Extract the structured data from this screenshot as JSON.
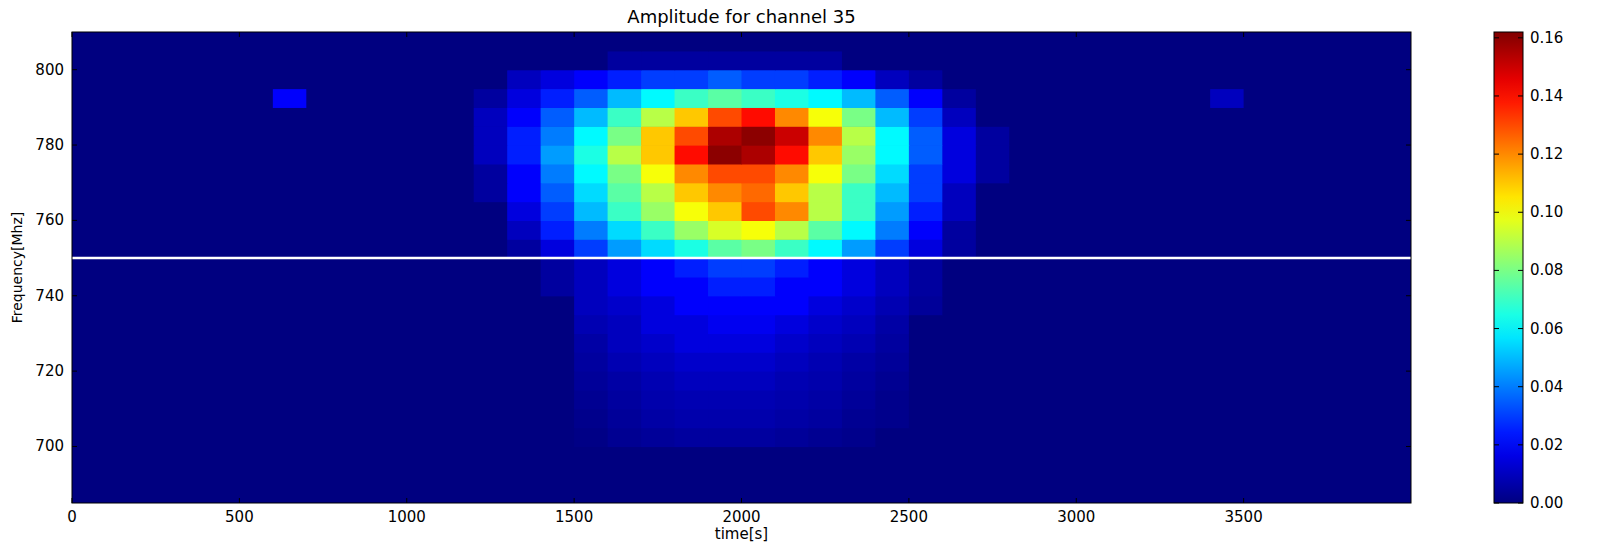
{
  "chart_data": {
    "type": "heatmap",
    "title": "Amplitude for channel 35",
    "x_label": "time[s]",
    "y_label": "Frequency[Mhz]",
    "xlim": [
      0,
      4000
    ],
    "ylim": [
      685,
      810
    ],
    "xticks": [
      0,
      500,
      1000,
      1500,
      2000,
      2500,
      3000,
      3500
    ],
    "yticks": [
      700,
      720,
      740,
      760,
      780,
      800
    ],
    "grid": false,
    "hline": 750,
    "colorbar": {
      "range": [
        0,
        0.162
      ],
      "ticks": [
        {
          "value": 0,
          "label": "0.00"
        },
        {
          "value": 0.02,
          "label": "0.02"
        },
        {
          "value": 0.04,
          "label": "0.04"
        },
        {
          "value": 0.06,
          "label": "0.06"
        },
        {
          "value": 0.08,
          "label": "0.08"
        },
        {
          "value": 0.1,
          "label": "0.10"
        },
        {
          "value": 0.12,
          "label": "0.12"
        },
        {
          "value": 0.14,
          "label": "0.14"
        },
        {
          "value": 0.16,
          "label": "0.16"
        }
      ]
    },
    "cells": {
      "x_edges": [
        0,
        100,
        200,
        300,
        400,
        500,
        600,
        700,
        800,
        900,
        1000,
        1100,
        1200,
        1300,
        1400,
        1500,
        1600,
        1700,
        1800,
        1900,
        2000,
        2100,
        2200,
        2300,
        2400,
        2500,
        2600,
        2700,
        2800,
        2900,
        3000,
        3100,
        3200,
        3300,
        3400,
        3500,
        3600,
        3700,
        3800,
        3900,
        4000
      ],
      "y_edges": [
        685,
        690,
        695,
        700,
        705,
        710,
        715,
        720,
        725,
        730,
        735,
        740,
        745,
        750,
        755,
        760,
        765,
        770,
        775,
        780,
        785,
        790,
        795,
        800,
        805,
        810
      ],
      "values": [
        [
          0,
          0,
          0,
          0,
          0,
          0,
          0,
          0,
          0,
          0,
          0,
          0,
          0,
          0,
          0,
          0,
          0,
          0,
          0,
          0,
          0,
          0,
          0,
          0,
          0,
          0,
          0,
          0,
          0,
          0,
          0,
          0,
          0,
          0,
          0,
          0,
          0,
          0,
          0,
          0
        ],
        [
          0,
          0,
          0,
          0,
          0,
          0,
          0,
          0,
          0,
          0,
          0,
          0,
          0,
          0,
          0,
          0,
          0,
          0,
          0,
          0,
          0,
          0,
          0,
          0,
          0,
          0,
          0,
          0,
          0,
          0,
          0,
          0,
          0,
          0,
          0,
          0,
          0,
          0,
          0,
          0
        ],
        [
          0,
          0,
          0,
          0,
          0,
          0,
          0,
          0,
          0,
          0,
          0,
          0,
          0,
          0,
          0,
          0,
          0,
          0,
          0,
          0,
          0,
          0,
          0,
          0,
          0,
          0,
          0,
          0,
          0,
          0,
          0,
          0,
          0,
          0,
          0,
          0,
          0,
          0,
          0,
          0
        ],
        [
          0,
          0,
          0,
          0,
          0,
          0,
          0,
          0,
          0,
          0,
          0,
          0,
          0,
          0,
          0,
          0.001,
          0.003,
          0.004,
          0.005,
          0.005,
          0.005,
          0.004,
          0.003,
          0.002,
          0,
          0,
          0,
          0,
          0,
          0,
          0,
          0,
          0,
          0,
          0,
          0,
          0,
          0,
          0,
          0
        ],
        [
          0,
          0,
          0,
          0,
          0,
          0,
          0,
          0,
          0,
          0,
          0,
          0,
          0,
          0,
          0,
          0.002,
          0.004,
          0.006,
          0.007,
          0.007,
          0.007,
          0.006,
          0.005,
          0.003,
          0.002,
          0,
          0,
          0,
          0,
          0,
          0,
          0,
          0,
          0,
          0,
          0,
          0,
          0,
          0,
          0
        ],
        [
          0,
          0,
          0,
          0,
          0,
          0,
          0,
          0,
          0,
          0,
          0,
          0,
          0,
          0,
          0,
          0.003,
          0.005,
          0.007,
          0.008,
          0.008,
          0.008,
          0.007,
          0.006,
          0.004,
          0.002,
          0,
          0,
          0,
          0,
          0,
          0,
          0,
          0,
          0,
          0,
          0,
          0,
          0,
          0,
          0
        ],
        [
          0,
          0,
          0,
          0,
          0,
          0,
          0,
          0,
          0,
          0,
          0,
          0,
          0,
          0,
          0,
          0.004,
          0.006,
          0.008,
          0.01,
          0.01,
          0.01,
          0.008,
          0.007,
          0.005,
          0.003,
          0,
          0,
          0,
          0,
          0,
          0,
          0,
          0,
          0,
          0,
          0,
          0,
          0,
          0,
          0
        ],
        [
          0,
          0,
          0,
          0,
          0,
          0,
          0,
          0,
          0,
          0,
          0,
          0,
          0,
          0,
          0,
          0.005,
          0.008,
          0.01,
          0.012,
          0.012,
          0.012,
          0.01,
          0.008,
          0.006,
          0.004,
          0,
          0,
          0,
          0,
          0,
          0,
          0,
          0,
          0,
          0,
          0,
          0,
          0,
          0,
          0
        ],
        [
          0,
          0,
          0,
          0,
          0,
          0,
          0,
          0,
          0,
          0,
          0,
          0,
          0,
          0,
          0,
          0.006,
          0.01,
          0.012,
          0.015,
          0.015,
          0.015,
          0.012,
          0.01,
          0.008,
          0.005,
          0,
          0,
          0,
          0,
          0,
          0,
          0,
          0,
          0,
          0,
          0,
          0,
          0,
          0,
          0
        ],
        [
          0,
          0,
          0,
          0,
          0,
          0,
          0,
          0,
          0,
          0,
          0,
          0,
          0,
          0,
          0,
          0.008,
          0.01,
          0.015,
          0.015,
          0.018,
          0.018,
          0.015,
          0.012,
          0.01,
          0.006,
          0,
          0,
          0,
          0,
          0,
          0,
          0,
          0,
          0,
          0,
          0,
          0,
          0,
          0,
          0
        ],
        [
          0,
          0,
          0,
          0,
          0,
          0,
          0,
          0,
          0,
          0,
          0,
          0,
          0,
          0,
          0,
          0.01,
          0.012,
          0.015,
          0.02,
          0.02,
          0.02,
          0.02,
          0.015,
          0.012,
          0.008,
          0.004,
          0,
          0,
          0,
          0,
          0,
          0,
          0,
          0,
          0,
          0,
          0,
          0,
          0,
          0
        ],
        [
          0,
          0,
          0,
          0,
          0,
          0,
          0,
          0,
          0,
          0,
          0,
          0,
          0,
          0,
          0.005,
          0.01,
          0.015,
          0.02,
          0.02,
          0.025,
          0.025,
          0.02,
          0.02,
          0.015,
          0.01,
          0.005,
          0,
          0,
          0,
          0,
          0,
          0,
          0,
          0,
          0,
          0,
          0,
          0,
          0,
          0
        ],
        [
          0,
          0,
          0,
          0,
          0,
          0,
          0,
          0,
          0,
          0,
          0,
          0,
          0,
          0,
          0.005,
          0.01,
          0.015,
          0.02,
          0.025,
          0.03,
          0.03,
          0.025,
          0.02,
          0.015,
          0.01,
          0.005,
          0,
          0,
          0,
          0,
          0,
          0,
          0,
          0,
          0,
          0,
          0,
          0,
          0,
          0
        ],
        [
          0,
          0,
          0,
          0,
          0,
          0,
          0,
          0,
          0,
          0,
          0,
          0,
          0,
          0.005,
          0.015,
          0.03,
          0.045,
          0.055,
          0.065,
          0.075,
          0.08,
          0.07,
          0.06,
          0.045,
          0.03,
          0.015,
          0.005,
          0,
          0,
          0,
          0,
          0,
          0,
          0,
          0,
          0,
          0,
          0,
          0,
          0
        ],
        [
          0,
          0,
          0,
          0,
          0,
          0,
          0,
          0,
          0,
          0,
          0,
          0,
          0,
          0.01,
          0.025,
          0.04,
          0.055,
          0.07,
          0.085,
          0.095,
          0.1,
          0.09,
          0.075,
          0.06,
          0.04,
          0.02,
          0.005,
          0,
          0,
          0,
          0,
          0,
          0,
          0,
          0,
          0,
          0,
          0,
          0,
          0
        ],
        [
          0,
          0,
          0,
          0,
          0,
          0,
          0,
          0,
          0,
          0,
          0,
          0,
          0,
          0.015,
          0.03,
          0.05,
          0.07,
          0.085,
          0.1,
          0.11,
          0.13,
          0.12,
          0.09,
          0.07,
          0.045,
          0.025,
          0.01,
          0,
          0,
          0,
          0,
          0,
          0,
          0,
          0,
          0,
          0,
          0,
          0,
          0
        ],
        [
          0,
          0,
          0,
          0,
          0,
          0,
          0,
          0,
          0,
          0,
          0,
          0,
          0.005,
          0.02,
          0.035,
          0.055,
          0.075,
          0.09,
          0.11,
          0.12,
          0.125,
          0.11,
          0.09,
          0.07,
          0.05,
          0.03,
          0.01,
          0,
          0,
          0,
          0,
          0,
          0,
          0,
          0,
          0,
          0,
          0,
          0,
          0
        ],
        [
          0,
          0,
          0,
          0,
          0,
          0,
          0,
          0,
          0,
          0,
          0,
          0,
          0.005,
          0.02,
          0.04,
          0.06,
          0.08,
          0.1,
          0.12,
          0.13,
          0.13,
          0.12,
          0.1,
          0.08,
          0.055,
          0.03,
          0.015,
          0.005,
          0,
          0,
          0,
          0,
          0,
          0,
          0,
          0,
          0,
          0,
          0,
          0
        ],
        [
          0,
          0,
          0,
          0,
          0,
          0,
          0,
          0,
          0,
          0,
          0,
          0,
          0.01,
          0.025,
          0.045,
          0.065,
          0.09,
          0.11,
          0.14,
          0.16,
          0.155,
          0.14,
          0.11,
          0.085,
          0.06,
          0.035,
          0.015,
          0.005,
          0,
          0,
          0,
          0,
          0,
          0,
          0,
          0,
          0,
          0,
          0,
          0
        ],
        [
          0,
          0,
          0,
          0,
          0,
          0,
          0,
          0,
          0,
          0,
          0,
          0,
          0.01,
          0.025,
          0.04,
          0.06,
          0.08,
          0.11,
          0.13,
          0.155,
          0.16,
          0.15,
          0.12,
          0.09,
          0.06,
          0.035,
          0.015,
          0.005,
          0,
          0,
          0,
          0,
          0,
          0,
          0,
          0,
          0,
          0,
          0,
          0
        ],
        [
          0,
          0,
          0,
          0,
          0,
          0,
          0,
          0,
          0,
          0,
          0,
          0,
          0.01,
          0.02,
          0.035,
          0.05,
          0.07,
          0.09,
          0.11,
          0.13,
          0.14,
          0.12,
          0.1,
          0.08,
          0.05,
          0.03,
          0.01,
          0,
          0,
          0,
          0,
          0,
          0,
          0,
          0,
          0,
          0,
          0,
          0,
          0
        ],
        [
          0,
          0,
          0,
          0,
          0,
          0,
          0.02,
          0,
          0,
          0,
          0,
          0,
          0.005,
          0.015,
          0.025,
          0.035,
          0.05,
          0.06,
          0.07,
          0.075,
          0.07,
          0.065,
          0.06,
          0.05,
          0.035,
          0.02,
          0.005,
          0,
          0,
          0,
          0,
          0,
          0,
          0,
          0.01,
          0,
          0,
          0,
          0,
          0
        ],
        [
          0,
          0,
          0,
          0,
          0,
          0,
          0,
          0,
          0,
          0,
          0,
          0,
          0,
          0.01,
          0.015,
          0.02,
          0.025,
          0.03,
          0.03,
          0.035,
          0.03,
          0.03,
          0.025,
          0.02,
          0.01,
          0.005,
          0,
          0,
          0,
          0,
          0,
          0,
          0,
          0,
          0,
          0,
          0,
          0,
          0,
          0
        ],
        [
          0,
          0,
          0,
          0,
          0,
          0,
          0,
          0,
          0,
          0,
          0,
          0,
          0,
          0,
          0,
          0,
          0.005,
          0.005,
          0.005,
          0.005,
          0.005,
          0.005,
          0.005,
          0,
          0,
          0,
          0,
          0,
          0,
          0,
          0,
          0,
          0,
          0,
          0,
          0,
          0,
          0,
          0,
          0
        ],
        [
          0,
          0,
          0,
          0,
          0,
          0,
          0,
          0,
          0,
          0,
          0,
          0,
          0,
          0,
          0,
          0,
          0,
          0,
          0,
          0,
          0,
          0,
          0,
          0,
          0,
          0,
          0,
          0,
          0,
          0,
          0,
          0,
          0,
          0,
          0,
          0,
          0,
          0,
          0,
          0
        ]
      ]
    }
  }
}
